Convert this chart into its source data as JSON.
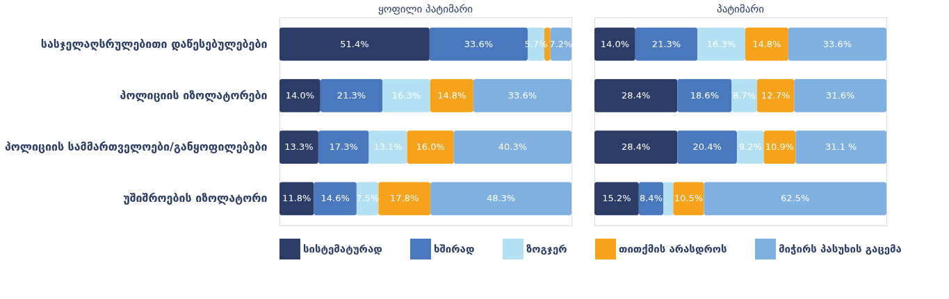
{
  "chart_data": [
    {
      "type": "bar",
      "orientation": "horizontal",
      "stacked": true,
      "title": "ყოფილი პატიმარი",
      "categories": [
        "სასჯელაღსრულებითი დაწესებულებები",
        "პოლიციის იზოლატორები",
        "პოლიციის სამმართველოები/განყოფილებები",
        "უშიშროების იზოლატორი"
      ],
      "xlim": [
        0,
        100
      ],
      "tick_labels": "y",
      "legend": "bottom",
      "series": [
        {
          "name": "სისტემატურად",
          "color": "#2b3d66",
          "values": [
            51.4,
            14.0,
            13.3,
            11.8
          ],
          "value_labels": [
            "51.4%",
            "14.0%",
            "13.3%",
            "11.8%"
          ]
        },
        {
          "name": "ხშირად",
          "color": "#4a78bf",
          "values": [
            33.6,
            21.3,
            17.3,
            14.6
          ],
          "value_labels": [
            "33.6%",
            "21.3%",
            "17.3%",
            "14.6%"
          ]
        },
        {
          "name": "ზოგჯერ",
          "color": "#b3e0f2",
          "values": [
            5.7,
            16.3,
            13.1,
            7.5
          ],
          "value_labels": [
            "5.7%",
            "16.3%",
            "13.1%",
            "7.5%"
          ]
        },
        {
          "name": "თითქმის არასდროს",
          "color": "#f7a21b",
          "values": [
            2.1,
            14.8,
            16.0,
            17.8
          ],
          "value_labels": [
            null,
            "14.8%",
            "16.0%",
            "17.8%"
          ]
        },
        {
          "name": "მიჭირს პასუხის გაცემა",
          "color": "#7fb0e0",
          "values": [
            7.2,
            33.6,
            40.3,
            48.3
          ],
          "value_labels": [
            "7.2%",
            "33.6%",
            "40.3%",
            "48.3%"
          ]
        }
      ]
    },
    {
      "type": "bar",
      "orientation": "horizontal",
      "stacked": true,
      "title": "პატიმარი",
      "categories": [
        null,
        null,
        null,
        null
      ],
      "xlim": [
        0,
        100
      ],
      "tick_labels": false,
      "series": [
        {
          "color": "#2b3d66",
          "values": [
            14.0,
            28.4,
            28.4,
            15.2
          ],
          "value_labels": [
            "14.0%",
            "28.4%",
            "28.4%",
            "15.2%"
          ]
        },
        {
          "color": "#4a78bf",
          "values": [
            21.3,
            18.6,
            20.4,
            8.4
          ],
          "value_labels": [
            "21.3%",
            "18.6%",
            "20.4%",
            "8.4%"
          ]
        },
        {
          "color": "#b3e0f2",
          "values": [
            16.3,
            8.7,
            9.2,
            3.4
          ],
          "value_labels": [
            "16.3%",
            "8.7%",
            "9.2%",
            null
          ]
        },
        {
          "color": "#f7a21b",
          "values": [
            14.8,
            12.7,
            10.9,
            10.5
          ],
          "value_labels": [
            "14.8%",
            "12.7%",
            "10.9%",
            "10.5%"
          ]
        },
        {
          "color": "#7fb0e0",
          "values": [
            33.6,
            31.6,
            31.1,
            62.5
          ],
          "value_labels": [
            "33.6%",
            "31.6%",
            "31.1 %",
            "62.5%"
          ]
        }
      ]
    }
  ]
}
